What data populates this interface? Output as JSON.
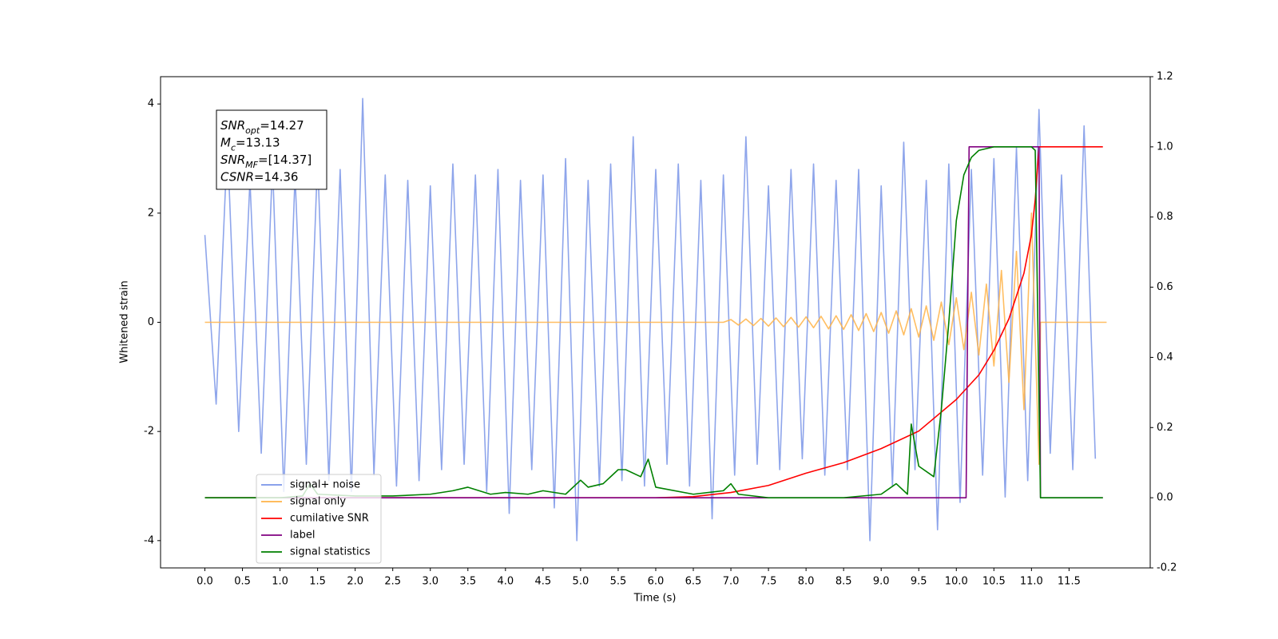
{
  "chart_data": {
    "type": "line",
    "xlabel": "Time (s)",
    "ylabel": "Whitened strain",
    "xlim": [
      -0.59,
      12.58
    ],
    "ylim": [
      -4.5,
      4.5
    ],
    "y2lim": [
      -0.2,
      1.2
    ],
    "xticks": [
      {
        "value": 0,
        "label": "0.0"
      },
      0.5,
      {
        "value": 1,
        "label": "1.0"
      },
      1.5,
      {
        "value": 2,
        "label": "2.0"
      },
      2.5,
      {
        "value": 3,
        "label": "3.0"
      },
      3.5,
      {
        "value": 4,
        "label": "4.0"
      },
      4.5,
      {
        "value": 5,
        "label": "5.0"
      },
      5.5,
      {
        "value": 6,
        "label": "6.0"
      },
      6.5,
      {
        "value": 7,
        "label": "7.0"
      },
      7.5,
      {
        "value": 8,
        "label": "8.0"
      },
      8.5,
      {
        "value": 9,
        "label": "9.0"
      },
      9.5,
      {
        "value": 10,
        "label": "10.0"
      },
      10.5,
      {
        "value": 11,
        "label": "11.0"
      },
      11.5
    ],
    "yticks": [
      -4,
      -2,
      0,
      2,
      4
    ],
    "y2ticks": [
      -0.2,
      {
        "value": 0,
        "label": "0.0"
      },
      0.2,
      0.4,
      0.6,
      0.8,
      {
        "value": 1,
        "label": "1.0"
      },
      1.2
    ],
    "grid": false,
    "legend_loc": "lower left",
    "annotation": [
      {
        "main": "SNR",
        "sub": "opt",
        "rest": "=14.27"
      },
      {
        "main": "M",
        "sub": "c",
        "rest": "=13.13"
      },
      {
        "main": "SNR",
        "sub": "MF",
        "rest": "=[14.37]"
      },
      {
        "main": "CSNR",
        "rest": "=14.36"
      }
    ],
    "series": [
      {
        "name": "signal+ noise",
        "color": "#7a95e8",
        "axis": "y",
        "x": [
          0,
          0.15,
          0.3,
          0.45,
          0.6,
          0.75,
          0.9,
          1.05,
          1.2,
          1.35,
          1.5,
          1.65,
          1.8,
          1.95,
          2.1,
          2.25,
          2.4,
          2.55,
          2.7,
          2.85,
          3.0,
          3.15,
          3.3,
          3.45,
          3.6,
          3.75,
          3.9,
          4.05,
          4.2,
          4.35,
          4.5,
          4.65,
          4.8,
          4.95,
          5.1,
          5.25,
          5.4,
          5.55,
          5.7,
          5.85,
          6.0,
          6.15,
          6.3,
          6.45,
          6.6,
          6.75,
          6.9,
          7.05,
          7.2,
          7.35,
          7.5,
          7.65,
          7.8,
          7.95,
          8.1,
          8.25,
          8.4,
          8.55,
          8.7,
          8.85,
          9.0,
          9.15,
          9.3,
          9.45,
          9.6,
          9.75,
          9.9,
          10.05,
          10.2,
          10.35,
          10.5,
          10.65,
          10.8,
          10.95,
          11.1,
          11.25,
          11.4,
          11.55,
          11.7,
          11.85
        ],
        "values": [
          1.6,
          -1.5,
          3.3,
          -2.0,
          2.6,
          -2.4,
          2.9,
          -3.1,
          2.7,
          -2.6,
          3.0,
          -2.9,
          2.8,
          -3.1,
          4.1,
          -2.8,
          2.7,
          -3.0,
          2.6,
          -2.9,
          2.5,
          -2.7,
          2.9,
          -2.6,
          2.7,
          -3.1,
          2.8,
          -3.5,
          2.6,
          -2.7,
          2.7,
          -3.4,
          3.0,
          -4.0,
          2.6,
          -3.0,
          2.9,
          -2.9,
          3.4,
          -3.0,
          2.8,
          -2.6,
          2.9,
          -3.0,
          2.6,
          -3.6,
          2.7,
          -2.8,
          3.4,
          -2.6,
          2.5,
          -2.7,
          2.8,
          -2.5,
          2.9,
          -2.8,
          2.6,
          -2.7,
          2.8,
          -4.0,
          2.5,
          -3.0,
          3.3,
          -2.7,
          2.6,
          -3.8,
          2.9,
          -3.3,
          2.8,
          -2.8,
          3.0,
          -3.2,
          3.2,
          -2.9,
          3.9,
          -2.4,
          2.7,
          -2.7,
          3.6,
          -2.5
        ]
      },
      {
        "name": "signal only",
        "color": "#ffb347",
        "axis": "y",
        "x": [
          0,
          6.9,
          7.0,
          7.1,
          7.2,
          7.3,
          7.4,
          7.5,
          7.6,
          7.7,
          7.8,
          7.9,
          8.0,
          8.1,
          8.2,
          8.3,
          8.4,
          8.5,
          8.6,
          8.7,
          8.8,
          8.9,
          9.0,
          9.1,
          9.2,
          9.3,
          9.4,
          9.5,
          9.6,
          9.7,
          9.8,
          9.9,
          10.0,
          10.1,
          10.2,
          10.3,
          10.4,
          10.5,
          10.6,
          10.7,
          10.8,
          10.9,
          11.0,
          11.1,
          11.12,
          12.0
        ],
        "values": [
          0,
          0,
          0.05,
          -0.05,
          0.06,
          -0.06,
          0.07,
          -0.07,
          0.08,
          -0.08,
          0.09,
          -0.09,
          0.1,
          -0.1,
          0.11,
          -0.12,
          0.12,
          -0.13,
          0.14,
          -0.15,
          0.16,
          -0.17,
          0.18,
          -0.2,
          0.21,
          -0.23,
          0.25,
          -0.27,
          0.3,
          -0.33,
          0.37,
          -0.41,
          0.45,
          -0.5,
          0.55,
          -0.6,
          0.7,
          -0.8,
          0.95,
          -1.1,
          1.3,
          -1.6,
          2.0,
          -2.6,
          0,
          0
        ]
      },
      {
        "name": "cumilative SNR",
        "color": "#ff0000",
        "axis": "y2",
        "x": [
          0,
          6.0,
          6.5,
          7.0,
          7.5,
          8.0,
          8.5,
          9.0,
          9.5,
          10.0,
          10.3,
          10.5,
          10.7,
          10.9,
          11.0,
          11.05,
          11.1,
          11.95
        ],
        "values": [
          0,
          0,
          0.003,
          0.015,
          0.035,
          0.07,
          0.1,
          0.14,
          0.19,
          0.28,
          0.35,
          0.42,
          0.51,
          0.64,
          0.75,
          0.85,
          1.0,
          1.0
        ]
      },
      {
        "name": "label",
        "color": "#800080",
        "axis": "y2",
        "x": [
          0,
          10.13,
          10.17,
          11.1,
          11.12,
          11.95
        ],
        "values": [
          0,
          0,
          1,
          1,
          0,
          0
        ]
      },
      {
        "name": "signal statistics",
        "color": "#008000",
        "axis": "y2",
        "x": [
          0,
          0.5,
          1.0,
          1.3,
          1.4,
          1.5,
          2.0,
          2.5,
          3.0,
          3.3,
          3.5,
          3.8,
          4.0,
          4.3,
          4.5,
          4.8,
          5.0,
          5.1,
          5.3,
          5.5,
          5.6,
          5.8,
          5.9,
          6.0,
          6.5,
          6.9,
          7.0,
          7.1,
          7.5,
          8.0,
          8.5,
          9.0,
          9.2,
          9.35,
          9.4,
          9.5,
          9.7,
          9.8,
          9.9,
          10.0,
          10.1,
          10.2,
          10.3,
          10.5,
          11.0,
          11.05,
          11.12,
          11.95
        ],
        "values": [
          0,
          0,
          0,
          0.005,
          0.04,
          0.01,
          0.005,
          0.005,
          0.01,
          0.02,
          0.03,
          0.01,
          0.015,
          0.01,
          0.02,
          0.01,
          0.05,
          0.03,
          0.04,
          0.08,
          0.08,
          0.06,
          0.11,
          0.03,
          0.01,
          0.02,
          0.04,
          0.01,
          0,
          0,
          0,
          0.01,
          0.04,
          0.01,
          0.21,
          0.09,
          0.06,
          0.25,
          0.5,
          0.79,
          0.92,
          0.97,
          0.99,
          1.0,
          1.0,
          0.99,
          0,
          0
        ]
      }
    ]
  }
}
